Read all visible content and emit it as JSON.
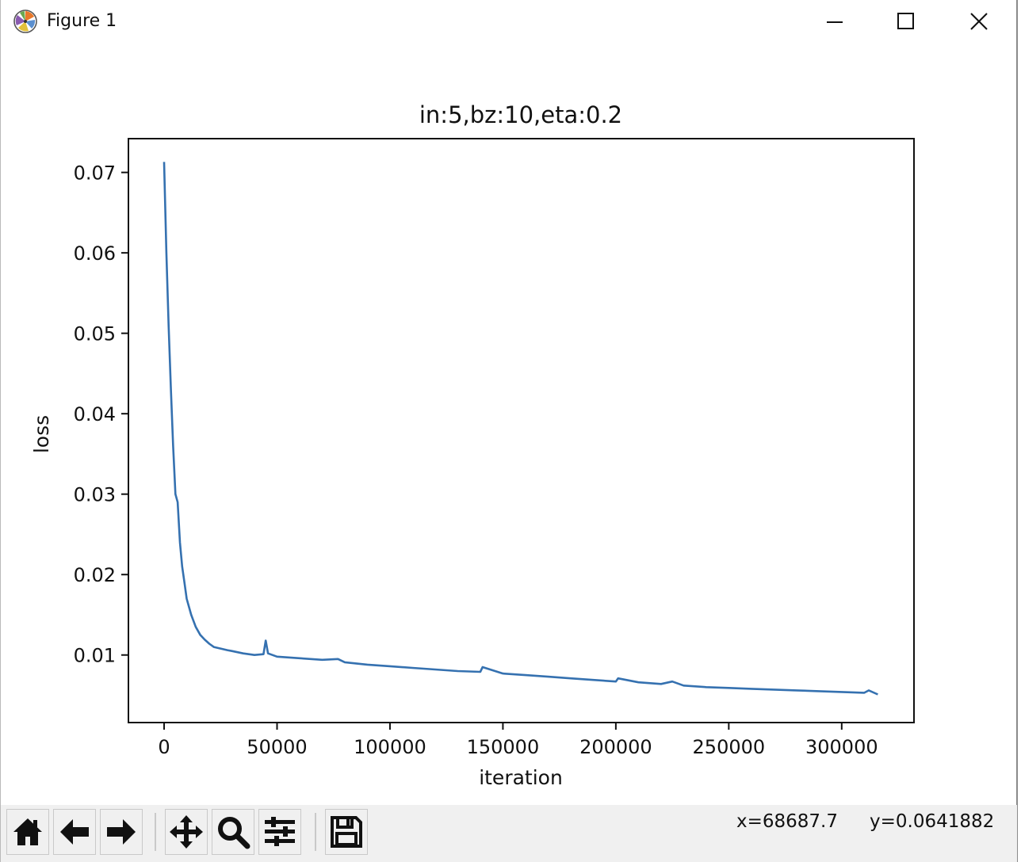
{
  "window": {
    "title": "Figure 1",
    "icon": "matplotlib-icon",
    "buttons": [
      "minimize-icon",
      "maximize-icon",
      "close-icon"
    ]
  },
  "toolbar": {
    "tools": [
      {
        "name": "home-icon",
        "tooltip": "Reset original view"
      },
      {
        "name": "back-arrow-icon",
        "tooltip": "Back to previous view"
      },
      {
        "name": "forward-arrow-icon",
        "tooltip": "Forward to next view"
      },
      {
        "name": "pan-icon",
        "tooltip": "Pan axes"
      },
      {
        "name": "zoom-icon",
        "tooltip": "Zoom to rectangle"
      },
      {
        "name": "configure-subplots-icon",
        "tooltip": "Configure subplots"
      },
      {
        "name": "save-icon",
        "tooltip": "Save the figure"
      }
    ],
    "coord_x": "x=68687.7",
    "coord_y": "y=0.0641882"
  },
  "chart_data": {
    "type": "line",
    "title": "in:5,bz:10,eta:0.2",
    "xlabel": "iteration",
    "ylabel": "loss",
    "xlim": [
      -15800,
      332000
    ],
    "ylim": [
      0.0016,
      0.0742
    ],
    "xticks": [
      0,
      50000,
      100000,
      150000,
      200000,
      250000,
      300000
    ],
    "yticks": [
      0.01,
      0.02,
      0.03,
      0.04,
      0.05,
      0.06,
      0.07
    ],
    "xtick_labels": [
      "0",
      "50000",
      "100000",
      "150000",
      "200000",
      "250000",
      "300000"
    ],
    "ytick_labels": [
      "0.01",
      "0.02",
      "0.03",
      "0.04",
      "0.05",
      "0.06",
      "0.07"
    ],
    "grid": false,
    "color": "#3571b0",
    "series": [
      {
        "x": [
          0,
          1000,
          2000,
          3000,
          4000,
          5000,
          6000,
          7000,
          8000,
          9000,
          10000,
          12000,
          14000,
          16000,
          18000,
          20000,
          22000,
          25000,
          28000,
          30000,
          35000,
          40000,
          44000,
          45000,
          46000,
          50000,
          55000,
          60000,
          70000,
          77000,
          80000,
          90000,
          100000,
          110000,
          120000,
          130000,
          140000,
          141000,
          150000,
          160000,
          170000,
          180000,
          190000,
          200000,
          201000,
          210000,
          220000,
          225000,
          230000,
          240000,
          250000,
          260000,
          270000,
          280000,
          290000,
          300000,
          310000,
          312000,
          316000
        ],
        "y": [
          0.0713,
          0.06,
          0.051,
          0.043,
          0.036,
          0.03,
          0.029,
          0.024,
          0.021,
          0.019,
          0.017,
          0.015,
          0.0135,
          0.0125,
          0.0119,
          0.0114,
          0.011,
          0.0108,
          0.0106,
          0.0105,
          0.0102,
          0.01,
          0.0101,
          0.0118,
          0.0102,
          0.0098,
          0.0097,
          0.0096,
          0.0094,
          0.0095,
          0.0091,
          0.0088,
          0.0086,
          0.0084,
          0.0082,
          0.008,
          0.0079,
          0.0085,
          0.0077,
          0.0075,
          0.0073,
          0.0071,
          0.0069,
          0.0067,
          0.0071,
          0.0066,
          0.0064,
          0.0067,
          0.0062,
          0.006,
          0.0059,
          0.0058,
          0.0057,
          0.0056,
          0.0055,
          0.0054,
          0.0053,
          0.0056,
          0.0051
        ]
      }
    ]
  }
}
